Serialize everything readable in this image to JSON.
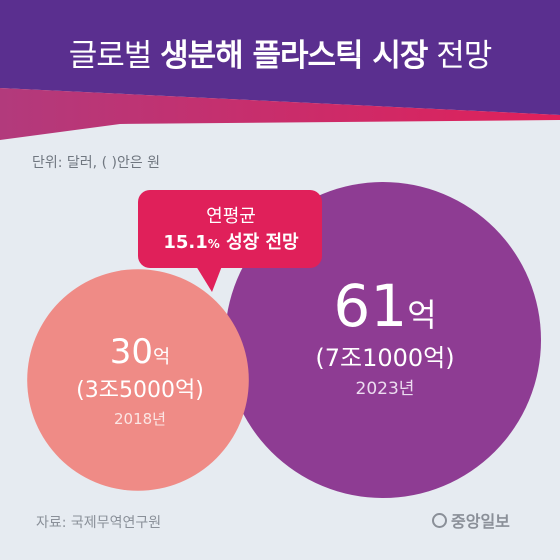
{
  "title": {
    "regular_1": "글로벌",
    "bold": "생분해 플라스틱 시장",
    "regular_2": "전망"
  },
  "unit_note": "단위: 달러, ( )안은 원",
  "callout": {
    "line1": "연평균",
    "rate": "15.1",
    "pct": "%",
    "line2_rest": " 성장 전망"
  },
  "chart_data": {
    "type": "bubble",
    "title": "글로벌 생분해 플라스틱 시장 전망",
    "unit_note": "단위: 달러, ( )안은 원",
    "points": [
      {
        "year": "2018년",
        "value": 30,
        "value_label": "30",
        "suffix": "억",
        "krw_label": "(3조5000억)",
        "color": "#ef8b86"
      },
      {
        "year": "2023년",
        "value": 61,
        "value_label": "61",
        "suffix": "억",
        "krw_label": "(7조1000억)",
        "color": "#8e3c93"
      }
    ],
    "annotation": "연평균 15.1% 성장 전망"
  },
  "source": "자료: 국제무역연구원",
  "brand": "중앙일보",
  "colors": {
    "header": "#5a2f8f",
    "accent_pink": "#e0205a",
    "accent_band": "#a2337a",
    "background": "#e6ebf1"
  }
}
